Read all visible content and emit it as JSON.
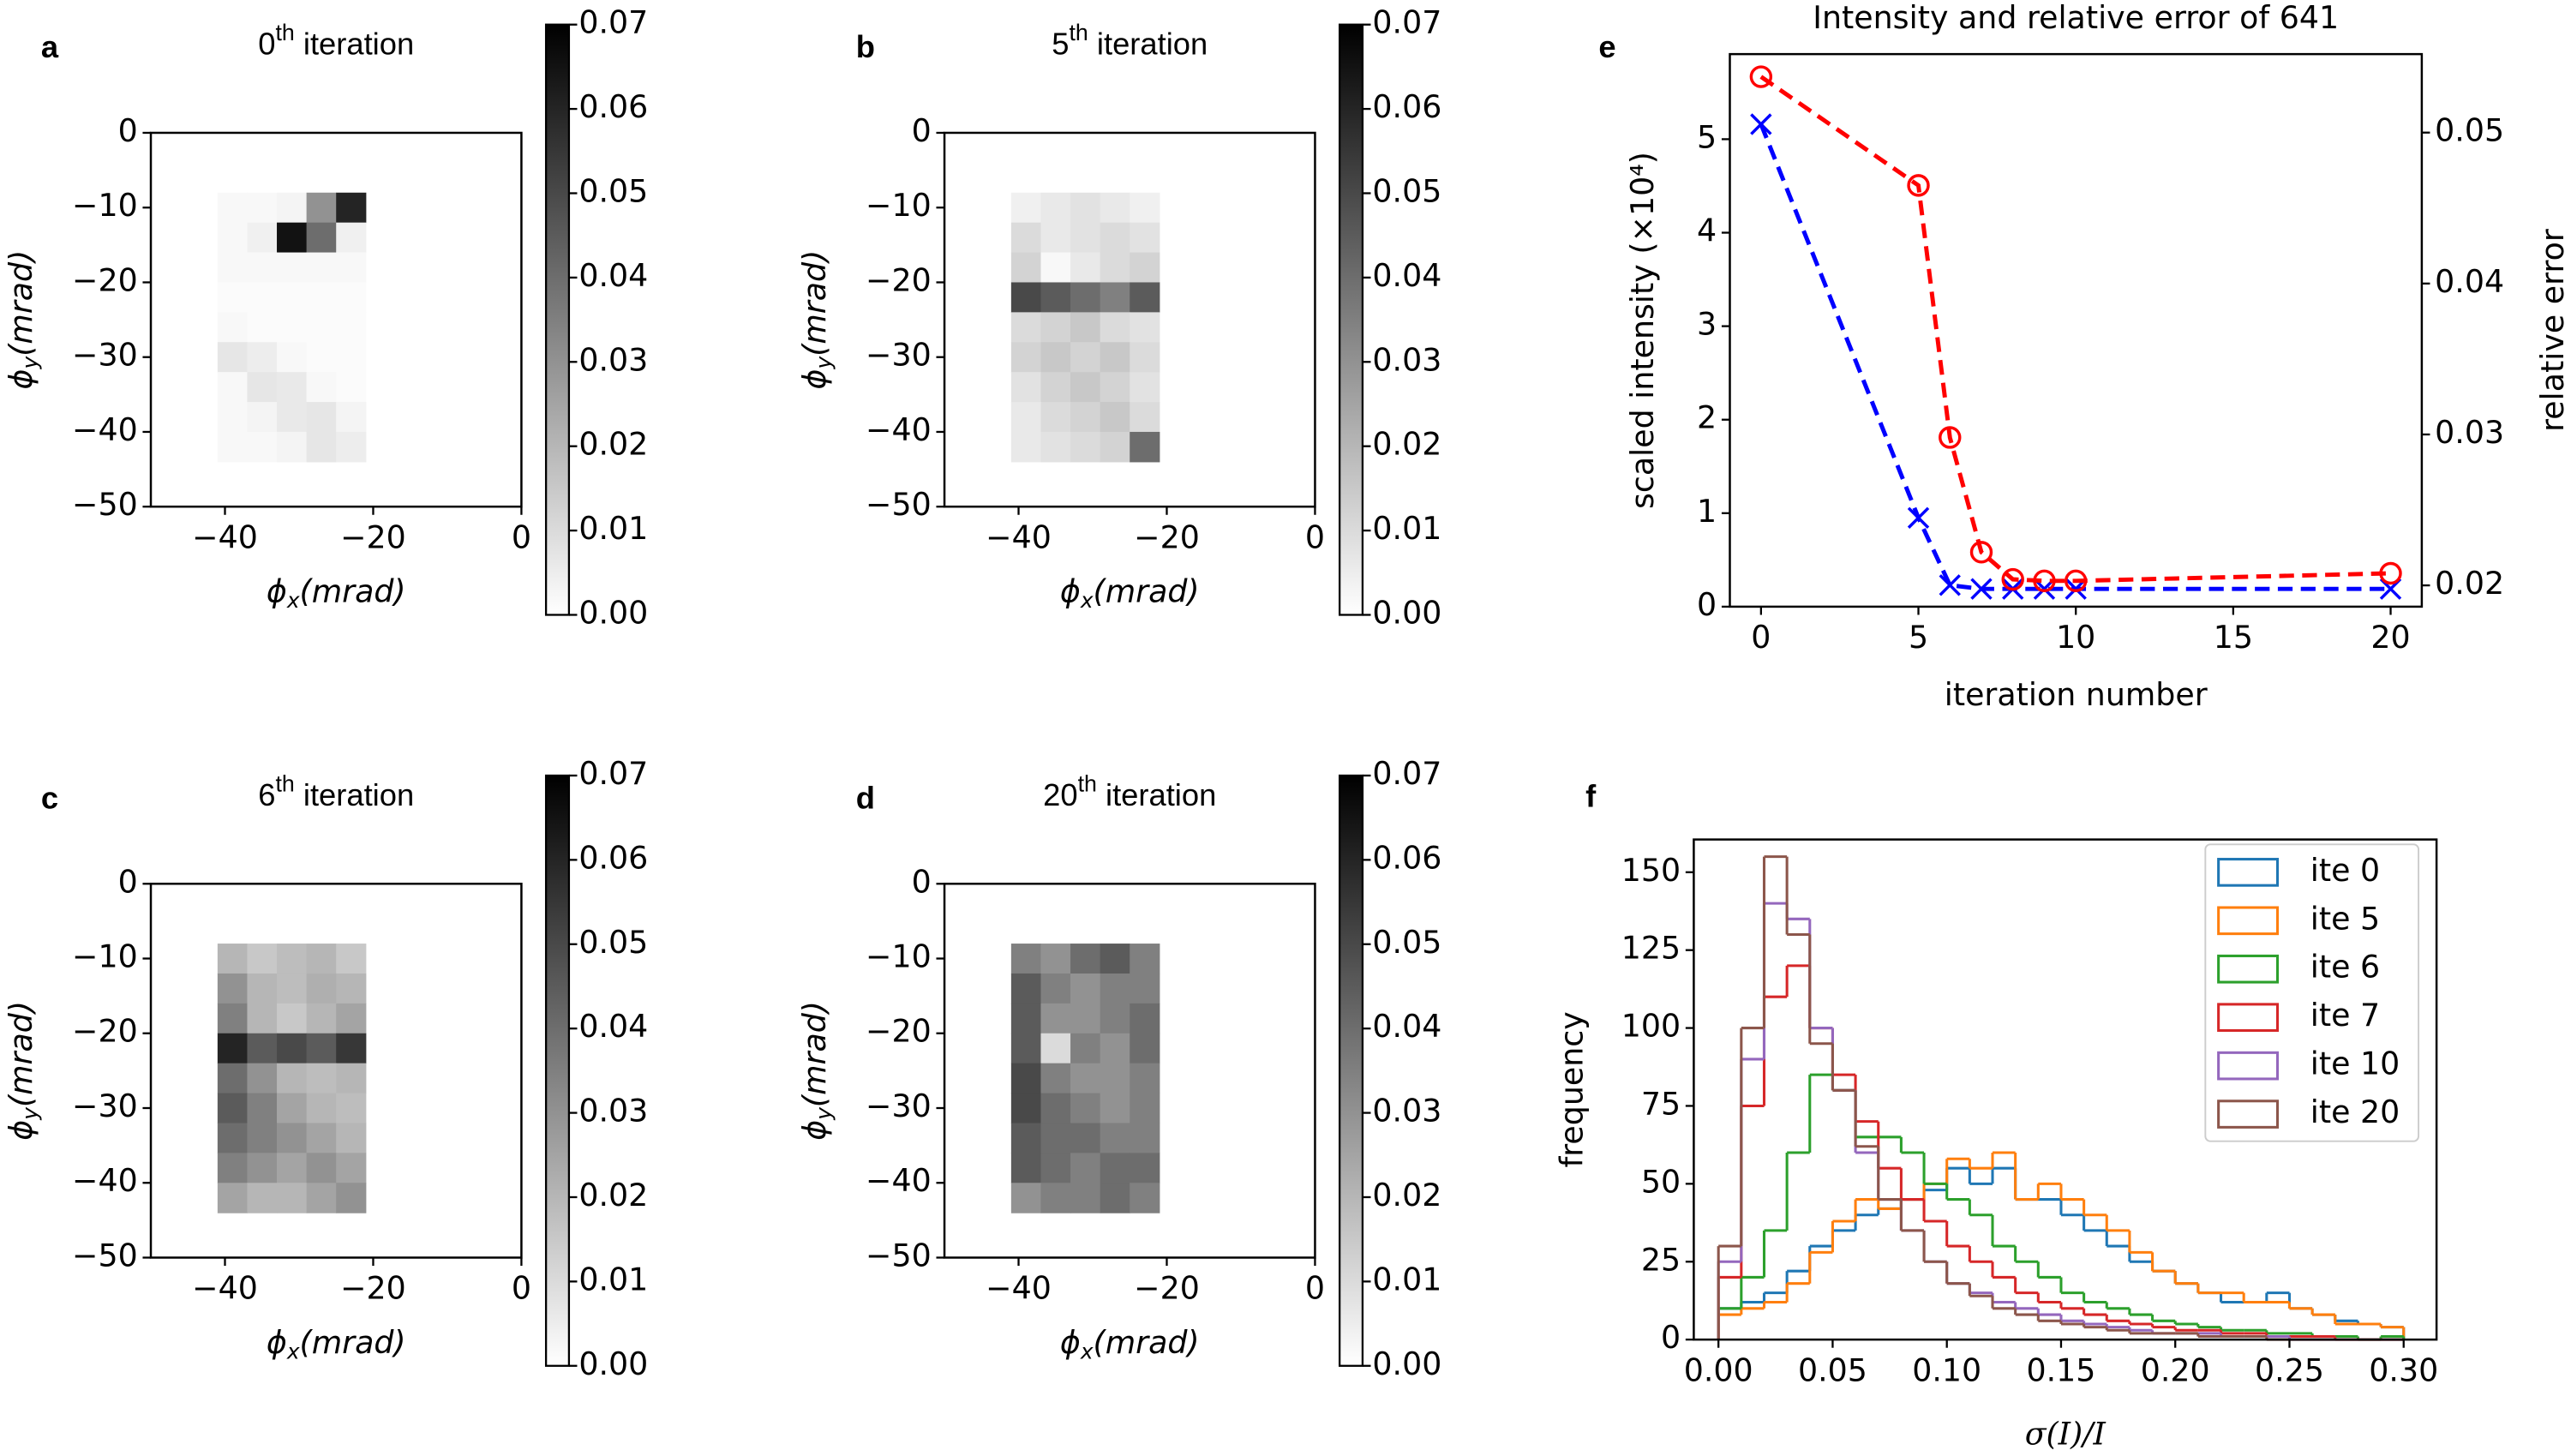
{
  "chart_data": [
    {
      "type": "heatmap",
      "panel_label": "a",
      "title_parts": [
        "0",
        "th",
        " iteration"
      ],
      "xlabel_parts": [
        "ϕ",
        "x",
        "(mrad)"
      ],
      "ylabel_parts": [
        "ϕ",
        "y",
        "(mrad)"
      ],
      "xlim": [
        -50,
        0
      ],
      "ylim": [
        -50,
        0
      ],
      "xticks": [
        {
          "value": -40,
          "label": "−40"
        },
        {
          "value": -20,
          "label": "−20"
        },
        0
      ],
      "yticks": [
        0,
        {
          "value": -10,
          "label": "−10"
        },
        {
          "value": -20,
          "label": "−20"
        },
        {
          "value": -30,
          "label": "−30"
        },
        {
          "value": -40,
          "label": "−40"
        },
        {
          "value": -50,
          "label": "−50"
        }
      ],
      "cmap": "gray_r",
      "x_edges": [
        -41,
        -37,
        -33,
        -29,
        -25,
        -21
      ],
      "y_edges": [
        -8,
        -12,
        -16,
        -20,
        -24,
        -28,
        -32,
        -36,
        -40,
        -44
      ],
      "z": [
        [
          0.002,
          0.002,
          0.003,
          0.03,
          0.06
        ],
        [
          0.002,
          0.004,
          0.065,
          0.04,
          0.004
        ],
        [
          0.002,
          0.002,
          0.002,
          0.002,
          0.002
        ],
        [
          0.001,
          0.001,
          0.001,
          0.001,
          0.001
        ],
        [
          0.002,
          0.001,
          0.001,
          0.001,
          0.001
        ],
        [
          0.007,
          0.005,
          0.002,
          0.001,
          0.001
        ],
        [
          0.002,
          0.007,
          0.006,
          0.002,
          0.001
        ],
        [
          0.002,
          0.003,
          0.006,
          0.007,
          0.003
        ],
        [
          0.002,
          0.002,
          0.003,
          0.007,
          0.005
        ]
      ],
      "colorbar": {
        "lim": [
          0,
          0.07
        ],
        "ticks": [
          {
            "value": 0,
            "label": "0.00"
          },
          0.01,
          0.02,
          0.03,
          0.04,
          0.05,
          0.06,
          0.07
        ]
      }
    },
    {
      "type": "heatmap",
      "panel_label": "b",
      "title_parts": [
        "5",
        "th",
        " iteration"
      ],
      "xlabel_parts": [
        "ϕ",
        "x",
        "(mrad)"
      ],
      "ylabel_parts": [
        "ϕ",
        "y",
        "(mrad)"
      ],
      "xlim": [
        -50,
        0
      ],
      "ylim": [
        -50,
        0
      ],
      "xticks": [
        {
          "value": -40,
          "label": "−40"
        },
        {
          "value": -20,
          "label": "−20"
        },
        0
      ],
      "yticks": [
        0,
        {
          "value": -10,
          "label": "−10"
        },
        {
          "value": -20,
          "label": "−20"
        },
        {
          "value": -30,
          "label": "−30"
        },
        {
          "value": -40,
          "label": "−40"
        },
        {
          "value": -50,
          "label": "−50"
        }
      ],
      "cmap": "gray_r",
      "x_edges": [
        -41,
        -37,
        -33,
        -29,
        -25,
        -21
      ],
      "y_edges": [
        -8,
        -12,
        -16,
        -20,
        -24,
        -28,
        -32,
        -36,
        -40,
        -44
      ],
      "z": [
        [
          0.004,
          0.006,
          0.008,
          0.006,
          0.004
        ],
        [
          0.01,
          0.006,
          0.008,
          0.01,
          0.008
        ],
        [
          0.012,
          0.002,
          0.006,
          0.01,
          0.012
        ],
        [
          0.05,
          0.045,
          0.04,
          0.035,
          0.045
        ],
        [
          0.01,
          0.012,
          0.015,
          0.01,
          0.008
        ],
        [
          0.012,
          0.015,
          0.012,
          0.015,
          0.01
        ],
        [
          0.008,
          0.012,
          0.015,
          0.012,
          0.008
        ],
        [
          0.006,
          0.01,
          0.012,
          0.015,
          0.01
        ],
        [
          0.006,
          0.008,
          0.01,
          0.012,
          0.04
        ]
      ],
      "colorbar": {
        "lim": [
          0,
          0.07
        ],
        "ticks": [
          {
            "value": 0,
            "label": "0.00"
          },
          0.01,
          0.02,
          0.03,
          0.04,
          0.05,
          0.06,
          0.07
        ]
      }
    },
    {
      "type": "heatmap",
      "panel_label": "c",
      "title_parts": [
        "6",
        "th",
        " iteration"
      ],
      "xlabel_parts": [
        "ϕ",
        "x",
        "(mrad)"
      ],
      "ylabel_parts": [
        "ϕ",
        "y",
        "(mrad)"
      ],
      "xlim": [
        -50,
        0
      ],
      "ylim": [
        -50,
        0
      ],
      "xticks": [
        {
          "value": -40,
          "label": "−40"
        },
        {
          "value": -20,
          "label": "−20"
        },
        0
      ],
      "yticks": [
        0,
        {
          "value": -10,
          "label": "−10"
        },
        {
          "value": -20,
          "label": "−20"
        },
        {
          "value": -30,
          "label": "−30"
        },
        {
          "value": -40,
          "label": "−40"
        },
        {
          "value": -50,
          "label": "−50"
        }
      ],
      "cmap": "gray_r",
      "x_edges": [
        -41,
        -37,
        -33,
        -29,
        -25,
        -21
      ],
      "y_edges": [
        -8,
        -12,
        -16,
        -20,
        -24,
        -28,
        -32,
        -36,
        -40,
        -44
      ],
      "z": [
        [
          0.02,
          0.015,
          0.018,
          0.02,
          0.015
        ],
        [
          0.03,
          0.02,
          0.018,
          0.022,
          0.02
        ],
        [
          0.035,
          0.02,
          0.015,
          0.02,
          0.025
        ],
        [
          0.06,
          0.045,
          0.05,
          0.045,
          0.055
        ],
        [
          0.04,
          0.03,
          0.02,
          0.018,
          0.02
        ],
        [
          0.045,
          0.035,
          0.025,
          0.02,
          0.018
        ],
        [
          0.04,
          0.035,
          0.03,
          0.025,
          0.02
        ],
        [
          0.035,
          0.03,
          0.025,
          0.03,
          0.025
        ],
        [
          0.025,
          0.02,
          0.02,
          0.025,
          0.03
        ]
      ],
      "colorbar": {
        "lim": [
          0,
          0.07
        ],
        "ticks": [
          {
            "value": 0,
            "label": "0.00"
          },
          0.01,
          0.02,
          0.03,
          0.04,
          0.05,
          0.06,
          0.07
        ]
      }
    },
    {
      "type": "heatmap",
      "panel_label": "d",
      "title_parts": [
        "20",
        "th",
        " iteration"
      ],
      "xlabel_parts": [
        "ϕ",
        "x",
        "(mrad)"
      ],
      "ylabel_parts": [
        "ϕ",
        "y",
        "(mrad)"
      ],
      "xlim": [
        -50,
        0
      ],
      "ylim": [
        -50,
        0
      ],
      "xticks": [
        {
          "value": -40,
          "label": "−40"
        },
        {
          "value": -20,
          "label": "−20"
        },
        0
      ],
      "yticks": [
        0,
        {
          "value": -10,
          "label": "−10"
        },
        {
          "value": -20,
          "label": "−20"
        },
        {
          "value": -30,
          "label": "−30"
        },
        {
          "value": -40,
          "label": "−40"
        },
        {
          "value": -50,
          "label": "−50"
        }
      ],
      "cmap": "gray_r",
      "x_edges": [
        -41,
        -37,
        -33,
        -29,
        -25,
        -21
      ],
      "y_edges": [
        -8,
        -12,
        -16,
        -20,
        -24,
        -28,
        -32,
        -36,
        -40,
        -44
      ],
      "z": [
        [
          0.035,
          0.03,
          0.04,
          0.045,
          0.035
        ],
        [
          0.045,
          0.035,
          0.03,
          0.035,
          0.035
        ],
        [
          0.045,
          0.03,
          0.03,
          0.035,
          0.04
        ],
        [
          0.045,
          0.01,
          0.035,
          0.03,
          0.04
        ],
        [
          0.05,
          0.035,
          0.03,
          0.03,
          0.035
        ],
        [
          0.05,
          0.04,
          0.035,
          0.03,
          0.035
        ],
        [
          0.045,
          0.04,
          0.04,
          0.035,
          0.035
        ],
        [
          0.045,
          0.04,
          0.035,
          0.04,
          0.04
        ],
        [
          0.03,
          0.035,
          0.035,
          0.04,
          0.035
        ]
      ],
      "colorbar": {
        "lim": [
          0,
          0.07
        ],
        "ticks": [
          {
            "value": 0,
            "label": "0.00"
          },
          0.01,
          0.02,
          0.03,
          0.04,
          0.05,
          0.06,
          0.07
        ]
      }
    },
    {
      "type": "line",
      "panel_label": "e",
      "title": "Intensity and relative error of 641",
      "xlabel": "iteration number",
      "ylabel": "scaled intensity (×10⁴)",
      "y2label": "relative error",
      "x": [
        0,
        5,
        6,
        7,
        8,
        9,
        10,
        20
      ],
      "xlim": [
        -0.99,
        20.99
      ],
      "xticks": [
        0,
        5,
        10,
        15,
        20
      ],
      "ylim": [
        0,
        5.91
      ],
      "yticks": [
        0,
        1,
        2,
        3,
        4,
        5
      ],
      "y2lim": [
        0.01859,
        0.0552
      ],
      "y2ticks": [
        0.02,
        0.03,
        0.04,
        0.05
      ],
      "series": [
        {
          "color": "#0000ff",
          "marker": "x",
          "values": [
            5.16,
            0.95,
            0.23,
            0.19,
            0.19,
            0.19,
            0.19,
            0.19
          ]
        },
        {
          "color": "#ff0000",
          "marker": "o",
          "axis": "y2",
          "values": [
            0.0537,
            0.0465,
            0.0298,
            0.0222,
            0.0204,
            0.0203,
            0.0203,
            0.0208
          ]
        }
      ]
    },
    {
      "type": "histogram",
      "panel_label": "f",
      "xlabel": "σ(I)/I",
      "ylabel": "frequency",
      "xlim": [
        -0.0108,
        0.3144
      ],
      "xticks": [
        {
          "value": 0,
          "label": "0.00"
        },
        0.05,
        {
          "value": 0.1,
          "label": "0.10"
        },
        0.15,
        {
          "value": 0.2,
          "label": "0.20"
        },
        0.25,
        {
          "value": 0.3,
          "label": "0.30"
        }
      ],
      "ylim": [
        0,
        160.5
      ],
      "yticks": [
        0,
        25,
        50,
        75,
        100,
        125,
        150
      ],
      "legend": "upper right",
      "bins": [
        0,
        0.01,
        0.02,
        0.03,
        0.04,
        0.05,
        0.06,
        0.07,
        0.08,
        0.09,
        0.1,
        0.11,
        0.12,
        0.13,
        0.14,
        0.15,
        0.16,
        0.17,
        0.18,
        0.19,
        0.2,
        0.21,
        0.22,
        0.23,
        0.24,
        0.25,
        0.26,
        0.27,
        0.28,
        0.29,
        0.3
      ],
      "series": [
        {
          "name": "ite 0",
          "color": "#1f77b4",
          "values": [
            10,
            12,
            15,
            22,
            30,
            35,
            40,
            42,
            45,
            48,
            55,
            50,
            55,
            45,
            45,
            40,
            35,
            30,
            25,
            22,
            18,
            15,
            12,
            12,
            15,
            10,
            8,
            6,
            5,
            4
          ]
        },
        {
          "name": "ite 5",
          "color": "#ff7f0e",
          "values": [
            8,
            10,
            12,
            18,
            28,
            38,
            45,
            42,
            45,
            50,
            58,
            55,
            60,
            45,
            50,
            45,
            40,
            35,
            28,
            22,
            18,
            15,
            15,
            12,
            12,
            10,
            8,
            5,
            5,
            4
          ]
        },
        {
          "name": "ite 6",
          "color": "#2ca02c",
          "values": [
            10,
            20,
            35,
            60,
            85,
            80,
            65,
            65,
            60,
            50,
            45,
            40,
            30,
            25,
            20,
            15,
            12,
            10,
            8,
            6,
            5,
            4,
            3,
            3,
            2,
            2,
            1,
            1,
            0,
            1
          ]
        },
        {
          "name": "ite 7",
          "color": "#d62728",
          "values": [
            20,
            75,
            110,
            120,
            100,
            85,
            70,
            55,
            45,
            38,
            30,
            25,
            20,
            15,
            12,
            10,
            8,
            6,
            5,
            4,
            3,
            3,
            2,
            2,
            1,
            1,
            1,
            0,
            0,
            0
          ]
        },
        {
          "name": "ite 10",
          "color": "#9467bd",
          "values": [
            25,
            90,
            140,
            135,
            100,
            80,
            60,
            45,
            35,
            25,
            18,
            15,
            12,
            10,
            8,
            6,
            5,
            4,
            3,
            2,
            2,
            2,
            1,
            1,
            1,
            0,
            0,
            0,
            0,
            0
          ]
        },
        {
          "name": "ite 20",
          "color": "#8c564b",
          "values": [
            30,
            100,
            155,
            130,
            95,
            80,
            62,
            45,
            35,
            25,
            18,
            14,
            10,
            8,
            6,
            5,
            4,
            3,
            2,
            2,
            2,
            1,
            1,
            1,
            0,
            0,
            0,
            0,
            0,
            0
          ]
        }
      ]
    }
  ]
}
